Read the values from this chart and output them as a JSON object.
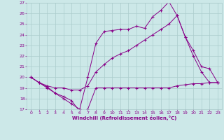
{
  "xlabel": "Windchill (Refroidissement éolien,°C)",
  "xlim": [
    -0.5,
    23.5
  ],
  "ylim": [
    17,
    27
  ],
  "xticks": [
    0,
    1,
    2,
    3,
    4,
    5,
    6,
    7,
    8,
    9,
    10,
    11,
    12,
    13,
    14,
    15,
    16,
    17,
    18,
    19,
    20,
    21,
    22,
    23
  ],
  "yticks": [
    17,
    18,
    19,
    20,
    21,
    22,
    23,
    24,
    25,
    26,
    27
  ],
  "bg_color": "#cce8e8",
  "grid_color": "#aacccc",
  "line_color": "#880088",
  "line1_x": [
    0,
    1,
    2,
    3,
    4,
    5,
    6,
    7,
    8,
    9,
    10,
    11,
    12,
    13,
    14,
    15,
    16,
    17,
    18,
    19,
    20,
    21,
    22,
    23
  ],
  "line1_y": [
    20.0,
    19.5,
    19.1,
    18.5,
    18.2,
    17.8,
    16.8,
    17.0,
    19.0,
    19.0,
    19.0,
    19.0,
    19.0,
    19.0,
    19.0,
    19.0,
    19.0,
    19.0,
    19.2,
    19.3,
    19.4,
    19.4,
    19.5,
    19.5
  ],
  "line2_x": [
    0,
    1,
    2,
    3,
    4,
    5,
    6,
    7,
    8,
    9,
    10,
    11,
    12,
    13,
    14,
    15,
    16,
    17,
    18,
    19,
    20,
    21,
    22,
    23
  ],
  "line2_y": [
    20.0,
    19.5,
    19.0,
    18.5,
    18.0,
    17.5,
    17.0,
    20.0,
    23.2,
    24.3,
    24.4,
    24.5,
    24.5,
    24.8,
    24.6,
    25.7,
    26.3,
    27.1,
    25.8,
    23.8,
    22.0,
    20.5,
    19.5,
    19.5
  ],
  "line3_x": [
    0,
    1,
    2,
    3,
    4,
    5,
    6,
    7,
    8,
    9,
    10,
    11,
    12,
    13,
    14,
    15,
    16,
    17,
    18,
    19,
    20,
    21,
    22,
    23
  ],
  "line3_y": [
    20.0,
    19.5,
    19.2,
    19.0,
    19.0,
    18.8,
    18.8,
    19.2,
    20.5,
    21.2,
    21.8,
    22.2,
    22.5,
    23.0,
    23.5,
    24.0,
    24.5,
    25.0,
    25.8,
    23.8,
    22.5,
    21.0,
    20.8,
    19.5
  ]
}
